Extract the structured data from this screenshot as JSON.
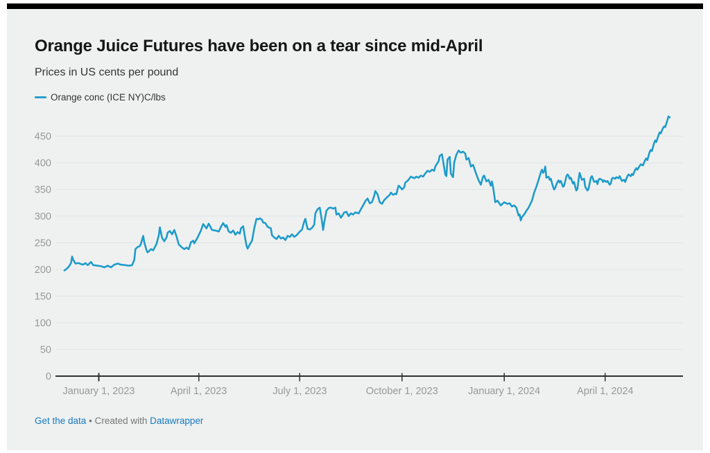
{
  "header": {
    "title": "Orange Juice Futures have been on a tear since mid-April",
    "subtitle": "Prices in US cents per pound"
  },
  "legend": {
    "label": "Orange conc (ICE NY)C/lbs",
    "color": "#2a9fcc"
  },
  "footer": {
    "get_data_link": "Get the data",
    "separator": "•",
    "created_with": "Created with",
    "brand_link": "Datawrapper"
  },
  "colors": {
    "line": "#1e9bc9",
    "grid": "#e2e5e5",
    "axis": "#2e2e2e",
    "tick_label": "#979797",
    "link_blue": "#1579c0",
    "card_bg": "#eff1f1",
    "topbar": "#000000"
  },
  "chart_data": {
    "type": "line",
    "title": "Orange Juice Futures have been on a tear since mid-April",
    "subtitle_unit": "US cents per pound",
    "legend_position": "top-left",
    "grid": true,
    "y_ticks": [
      0,
      50,
      100,
      150,
      200,
      250,
      300,
      350,
      400,
      450
    ],
    "y_domain": [
      0,
      490
    ],
    "x_ticks": [
      {
        "d": 31,
        "label": "January 1, 2023"
      },
      {
        "d": 121,
        "label": "April 1, 2023"
      },
      {
        "d": 212,
        "label": "July 1, 2023"
      },
      {
        "d": 304,
        "label": "October 1, 2023"
      },
      {
        "d": 396,
        "label": "January 1, 2024"
      },
      {
        "d": 487,
        "label": "April 1, 2024"
      }
    ],
    "x_domain_days": [
      -8,
      557
    ],
    "x_day_zero": "2022-12-01",
    "series": [
      {
        "name": "Orange conc (ICE NY)C/lbs",
        "color": "#1e9bc9",
        "points": [
          [
            0,
            198
          ],
          [
            2,
            201
          ],
          [
            4,
            205
          ],
          [
            6,
            212
          ],
          [
            7,
            224
          ],
          [
            8,
            218
          ],
          [
            10,
            211
          ],
          [
            13,
            212
          ],
          [
            15,
            210
          ],
          [
            17,
            209
          ],
          [
            19,
            212
          ],
          [
            21,
            208
          ],
          [
            24,
            214
          ],
          [
            26,
            208
          ],
          [
            30,
            207
          ],
          [
            33,
            206
          ],
          [
            36,
            204
          ],
          [
            39,
            207
          ],
          [
            42,
            204
          ],
          [
            45,
            209
          ],
          [
            48,
            211
          ],
          [
            51,
            209
          ],
          [
            55,
            208
          ],
          [
            58,
            207
          ],
          [
            61,
            208
          ],
          [
            63,
            218
          ],
          [
            64,
            238
          ],
          [
            66,
            242
          ],
          [
            68,
            244
          ],
          [
            69,
            248
          ],
          [
            71,
            263
          ],
          [
            72,
            251
          ],
          [
            74,
            236
          ],
          [
            75,
            232
          ],
          [
            78,
            238
          ],
          [
            80,
            236
          ],
          [
            83,
            248
          ],
          [
            85,
            264
          ],
          [
            86,
            279
          ],
          [
            88,
            259
          ],
          [
            90,
            253
          ],
          [
            92,
            260
          ],
          [
            93,
            269
          ],
          [
            95,
            272
          ],
          [
            97,
            266
          ],
          [
            99,
            274
          ],
          [
            101,
            262
          ],
          [
            103,
            247
          ],
          [
            106,
            241
          ],
          [
            108,
            238
          ],
          [
            110,
            241
          ],
          [
            112,
            238
          ],
          [
            114,
            251
          ],
          [
            116,
            254
          ],
          [
            117,
            249
          ],
          [
            120,
            260
          ],
          [
            123,
            273
          ],
          [
            125,
            285
          ],
          [
            128,
            277
          ],
          [
            130,
            286
          ],
          [
            133,
            274
          ],
          [
            136,
            273
          ],
          [
            139,
            271
          ],
          [
            141,
            280
          ],
          [
            143,
            287
          ],
          [
            145,
            280
          ],
          [
            146,
            283
          ],
          [
            148,
            271
          ],
          [
            150,
            269
          ],
          [
            152,
            273
          ],
          [
            154,
            265
          ],
          [
            156,
            270
          ],
          [
            158,
            267
          ],
          [
            159,
            277
          ],
          [
            161,
            281
          ],
          [
            163,
            256
          ],
          [
            164,
            245
          ],
          [
            165,
            239
          ],
          [
            167,
            247
          ],
          [
            169,
            254
          ],
          [
            171,
            277
          ],
          [
            173,
            295
          ],
          [
            175,
            294
          ],
          [
            176,
            296
          ],
          [
            178,
            293
          ],
          [
            179,
            288
          ],
          [
            181,
            287
          ],
          [
            183,
            280
          ],
          [
            186,
            277
          ],
          [
            187,
            264
          ],
          [
            189,
            260
          ],
          [
            191,
            257
          ],
          [
            193,
            263
          ],
          [
            195,
            258
          ],
          [
            197,
            260
          ],
          [
            199,
            255
          ],
          [
            201,
            263
          ],
          [
            203,
            261
          ],
          [
            205,
            266
          ],
          [
            207,
            261
          ],
          [
            209,
            264
          ],
          [
            212,
            271
          ],
          [
            214,
            275
          ],
          [
            216,
            290
          ],
          [
            217,
            295
          ],
          [
            219,
            276
          ],
          [
            221,
            275
          ],
          [
            223,
            278
          ],
          [
            225,
            284
          ],
          [
            226,
            305
          ],
          [
            228,
            313
          ],
          [
            230,
            316
          ],
          [
            232,
            290
          ],
          [
            233,
            274
          ],
          [
            234,
            288
          ],
          [
            236,
            310
          ],
          [
            238,
            315
          ],
          [
            240,
            316
          ],
          [
            242,
            314
          ],
          [
            244,
            316
          ],
          [
            245,
            303
          ],
          [
            247,
            305
          ],
          [
            249,
            297
          ],
          [
            250,
            300
          ],
          [
            252,
            307
          ],
          [
            254,
            308
          ],
          [
            256,
            300
          ],
          [
            258,
            305
          ],
          [
            260,
            303
          ],
          [
            262,
            307
          ],
          [
            265,
            305
          ],
          [
            267,
            313
          ],
          [
            269,
            320
          ],
          [
            271,
            328
          ],
          [
            273,
            333
          ],
          [
            275,
            324
          ],
          [
            277,
            326
          ],
          [
            279,
            338
          ],
          [
            280,
            347
          ],
          [
            282,
            341
          ],
          [
            284,
            326
          ],
          [
            286,
            323
          ],
          [
            288,
            330
          ],
          [
            290,
            334
          ],
          [
            293,
            340
          ],
          [
            294,
            344
          ],
          [
            296,
            340
          ],
          [
            298,
            342
          ],
          [
            299,
            341
          ],
          [
            300,
            350
          ],
          [
            301,
            357
          ],
          [
            303,
            353
          ],
          [
            304,
            350
          ],
          [
            306,
            354
          ],
          [
            307,
            363
          ],
          [
            309,
            366
          ],
          [
            312,
            374
          ],
          [
            315,
            371
          ],
          [
            317,
            374
          ],
          [
            319,
            372
          ],
          [
            321,
            376
          ],
          [
            323,
            374
          ],
          [
            325,
            380
          ],
          [
            327,
            385
          ],
          [
            329,
            383
          ],
          [
            331,
            387
          ],
          [
            333,
            385
          ],
          [
            334,
            393
          ],
          [
            337,
            403
          ],
          [
            338,
            413
          ],
          [
            340,
            416
          ],
          [
            342,
            391
          ],
          [
            343,
            378
          ],
          [
            344,
            375
          ],
          [
            345,
            406
          ],
          [
            347,
            411
          ],
          [
            348,
            380
          ],
          [
            350,
            373
          ],
          [
            351,
            400
          ],
          [
            353,
            415
          ],
          [
            355,
            423
          ],
          [
            357,
            419
          ],
          [
            359,
            421
          ],
          [
            361,
            417
          ],
          [
            362,
            406
          ],
          [
            364,
            409
          ],
          [
            366,
            393
          ],
          [
            368,
            396
          ],
          [
            371,
            378
          ],
          [
            373,
            367
          ],
          [
            375,
            359
          ],
          [
            377,
            374
          ],
          [
            378,
            376
          ],
          [
            380,
            365
          ],
          [
            382,
            368
          ],
          [
            384,
            357
          ],
          [
            385,
            365
          ],
          [
            386,
            355
          ],
          [
            388,
            326
          ],
          [
            390,
            329
          ],
          [
            393,
            320
          ],
          [
            395,
            324
          ],
          [
            396,
            326
          ],
          [
            399,
            323
          ],
          [
            401,
            324
          ],
          [
            403,
            318
          ],
          [
            405,
            320
          ],
          [
            407,
            316
          ],
          [
            409,
            301
          ],
          [
            410,
            303
          ],
          [
            411,
            292
          ],
          [
            412,
            298
          ],
          [
            414,
            303
          ],
          [
            416,
            310
          ],
          [
            418,
            316
          ],
          [
            421,
            329
          ],
          [
            423,
            344
          ],
          [
            425,
            355
          ],
          [
            427,
            368
          ],
          [
            429,
            382
          ],
          [
            430,
            387
          ],
          [
            431,
            381
          ],
          [
            432,
            384
          ],
          [
            433,
            393
          ],
          [
            434,
            372
          ],
          [
            436,
            374
          ],
          [
            437,
            368
          ],
          [
            438,
            370
          ],
          [
            440,
            355
          ],
          [
            441,
            350
          ],
          [
            442,
            353
          ],
          [
            443,
            359
          ],
          [
            444,
            364
          ],
          [
            445,
            367
          ],
          [
            446,
            363
          ],
          [
            447,
            366
          ],
          [
            449,
            355
          ],
          [
            450,
            357
          ],
          [
            452,
            374
          ],
          [
            453,
            378
          ],
          [
            454,
            376
          ],
          [
            455,
            370
          ],
          [
            456,
            372
          ],
          [
            458,
            361
          ],
          [
            459,
            364
          ],
          [
            460,
            355
          ],
          [
            461,
            348
          ],
          [
            462,
            351
          ],
          [
            463,
            368
          ],
          [
            464,
            381
          ],
          [
            466,
            368
          ],
          [
            468,
            370
          ],
          [
            469,
            355
          ],
          [
            471,
            348
          ],
          [
            472,
            351
          ],
          [
            474,
            372
          ],
          [
            475,
            375
          ],
          [
            477,
            364
          ],
          [
            479,
            366
          ],
          [
            480,
            360
          ],
          [
            481,
            368
          ],
          [
            482,
            370
          ],
          [
            484,
            368
          ],
          [
            485,
            364
          ],
          [
            486,
            367
          ],
          [
            488,
            364
          ],
          [
            489,
            366
          ],
          [
            491,
            359
          ],
          [
            492,
            361
          ],
          [
            493,
            370
          ],
          [
            494,
            372
          ],
          [
            496,
            370
          ],
          [
            497,
            373
          ],
          [
            499,
            371
          ],
          [
            500,
            375
          ],
          [
            502,
            366
          ],
          [
            504,
            368
          ],
          [
            505,
            364
          ],
          [
            507,
            375
          ],
          [
            508,
            378
          ],
          [
            510,
            375
          ],
          [
            511,
            379
          ],
          [
            512,
            377
          ],
          [
            514,
            387
          ],
          [
            515,
            390
          ],
          [
            516,
            387
          ],
          [
            518,
            394
          ],
          [
            519,
            397
          ],
          [
            521,
            395
          ],
          [
            523,
            405
          ],
          [
            524,
            408
          ],
          [
            525,
            405
          ],
          [
            527,
            420
          ],
          [
            528,
            424
          ],
          [
            529,
            422
          ],
          [
            531,
            437
          ],
          [
            532,
            442
          ],
          [
            533,
            439
          ],
          [
            535,
            452
          ],
          [
            536,
            457
          ],
          [
            537,
            455
          ],
          [
            539,
            465
          ],
          [
            540,
            468
          ],
          [
            541,
            467
          ],
          [
            543,
            480
          ],
          [
            544,
            487
          ],
          [
            545,
            485
          ]
        ]
      }
    ]
  }
}
